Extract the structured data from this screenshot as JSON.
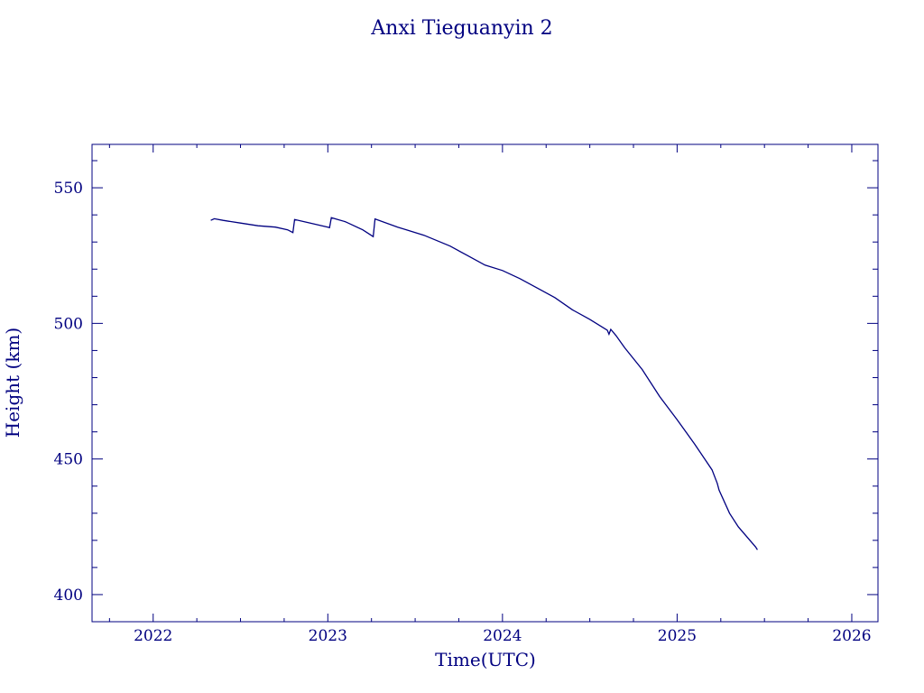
{
  "colors": {
    "ink": "#000080",
    "background": "#ffffff"
  },
  "chart_data": {
    "type": "line",
    "title": "Anxi Tieguanyin 2",
    "xlabel": "Time(UTC)",
    "ylabel": "Height (km)",
    "x_unit": "year",
    "xlim": [
      2021.65,
      2026.15
    ],
    "ylim": [
      390,
      566
    ],
    "x_ticks": [
      2022,
      2023,
      2024,
      2025,
      2026
    ],
    "x_tick_labels": [
      "2022",
      "2023",
      "2024",
      "2025",
      "2026"
    ],
    "y_ticks": [
      400,
      450,
      500,
      550
    ],
    "y_tick_labels": [
      "400",
      "450",
      "500",
      "550"
    ],
    "grid": false,
    "series": [
      {
        "color": "#000080",
        "points": [
          [
            2022.33,
            538.0
          ],
          [
            2022.35,
            538.6
          ],
          [
            2022.4,
            538.0
          ],
          [
            2022.5,
            537.0
          ],
          [
            2022.6,
            536.0
          ],
          [
            2022.7,
            535.5
          ],
          [
            2022.77,
            534.5
          ],
          [
            2022.8,
            533.5
          ],
          [
            2022.81,
            538.3
          ],
          [
            2022.9,
            537.0
          ],
          [
            2023.0,
            535.5
          ],
          [
            2023.01,
            535.3
          ],
          [
            2023.02,
            539.0
          ],
          [
            2023.1,
            537.5
          ],
          [
            2023.2,
            534.5
          ],
          [
            2023.26,
            532.0
          ],
          [
            2023.27,
            538.5
          ],
          [
            2023.4,
            535.5
          ],
          [
            2023.55,
            532.5
          ],
          [
            2023.7,
            528.5
          ],
          [
            2023.8,
            525.0
          ],
          [
            2023.9,
            521.5
          ],
          [
            2024.0,
            519.5
          ],
          [
            2024.1,
            516.5
          ],
          [
            2024.2,
            513.0
          ],
          [
            2024.3,
            509.5
          ],
          [
            2024.4,
            505.0
          ],
          [
            2024.5,
            501.5
          ],
          [
            2024.6,
            497.5
          ],
          [
            2024.61,
            496.0
          ],
          [
            2024.62,
            497.8
          ],
          [
            2024.65,
            495.5
          ],
          [
            2024.7,
            491.0
          ],
          [
            2024.8,
            483.0
          ],
          [
            2024.9,
            473.0
          ],
          [
            2025.0,
            464.5
          ],
          [
            2025.1,
            455.5
          ],
          [
            2025.2,
            446.0
          ],
          [
            2025.23,
            441.0
          ],
          [
            2025.24,
            438.5
          ],
          [
            2025.3,
            430.0
          ],
          [
            2025.35,
            425.0
          ],
          [
            2025.45,
            417.5
          ],
          [
            2025.46,
            416.5
          ]
        ]
      }
    ]
  }
}
